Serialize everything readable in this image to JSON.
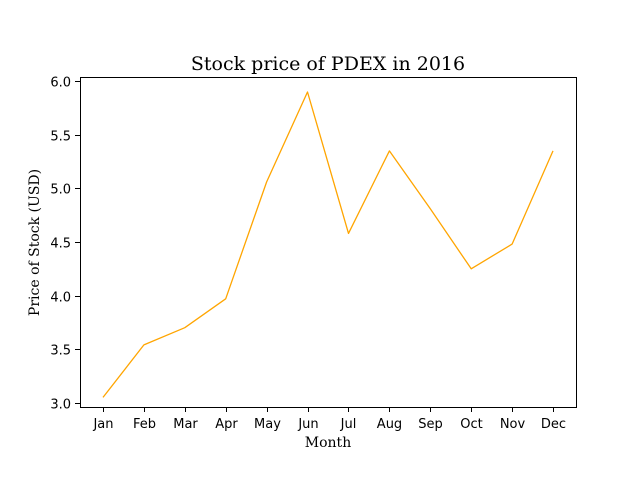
{
  "chart_data": {
    "type": "line",
    "title": "Stock price of PDEX in 2016",
    "xlabel": "Month",
    "ylabel": "Price of Stock (USD)",
    "categories": [
      "Jan",
      "Feb",
      "Mar",
      "Apr",
      "May",
      "Jun",
      "Jul",
      "Aug",
      "Sep",
      "Oct",
      "Nov",
      "Dec"
    ],
    "series": [
      {
        "values": [
          3.05,
          3.54,
          3.7,
          3.97,
          5.06,
          5.9,
          4.58,
          5.35,
          4.81,
          4.25,
          4.48,
          5.35
        ],
        "color": "#ffa500"
      }
    ],
    "ylim": [
      2.96,
      6.04
    ],
    "yticks": [
      3.0,
      3.5,
      4.0,
      4.5,
      5.0,
      5.5,
      6.0
    ],
    "ytick_labels": [
      "3.0",
      "3.5",
      "4.0",
      "4.5",
      "5.0",
      "5.5",
      "6.0"
    ],
    "grid": false,
    "legend": "none"
  }
}
